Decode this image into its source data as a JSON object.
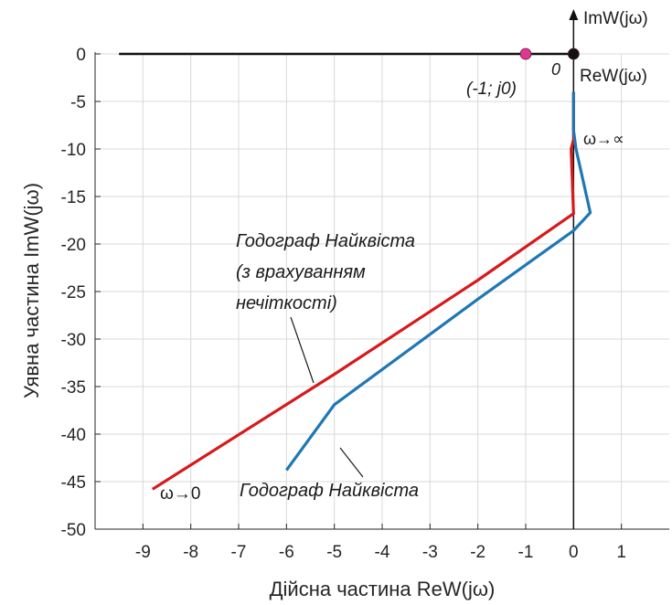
{
  "chart_data": {
    "type": "line",
    "title": "",
    "xlabel": "Дійсна частина ReW(jω)",
    "ylabel": "Уявна частина ImW(jω)",
    "xlim": [
      -10,
      2
    ],
    "ylim": [
      -50,
      0
    ],
    "x_ticks": [
      -9,
      -8,
      -7,
      -6,
      -5,
      -4,
      -3,
      -2,
      -1,
      0,
      1
    ],
    "x_tick_labels": [
      "-9",
      "-8",
      "-7",
      "-6",
      "-5",
      "-4",
      "-3",
      "-2",
      "-1",
      "0",
      "1"
    ],
    "y_ticks": [
      0,
      -5,
      -10,
      -15,
      -20,
      -25,
      -30,
      -35,
      -40,
      -45,
      -50
    ],
    "y_tick_labels": [
      "0",
      "-5",
      "-10",
      "-15",
      "-20",
      "-25",
      "-30",
      "-35",
      "-40",
      "-45",
      "-50"
    ],
    "grid": true,
    "series": [
      {
        "color": "#d7191c",
        "points": [
          [
            0.0,
            -4.0
          ],
          [
            0.0,
            -9.0
          ],
          [
            -0.05,
            -10.0
          ],
          [
            0.0,
            -16.8
          ],
          [
            -2.0,
            -23.8
          ],
          [
            -5.0,
            -33.7
          ],
          [
            -8.8,
            -45.8
          ]
        ]
      },
      {
        "color": "#1f77b4",
        "points": [
          [
            0.0,
            -4.0
          ],
          [
            0.0,
            -8.0
          ],
          [
            0.05,
            -10.0
          ],
          [
            0.35,
            -16.7
          ],
          [
            0.0,
            -18.6
          ],
          [
            -2.0,
            -25.8
          ],
          [
            -5.0,
            -36.9
          ],
          [
            -6.0,
            -43.8
          ]
        ]
      }
    ],
    "markers": [
      {
        "x": -1,
        "y": 0,
        "color": "#e0388f"
      },
      {
        "x": 0,
        "y": 0,
        "color": "#111111"
      }
    ],
    "annotations": {
      "im_axis_label": "ImW(jω)",
      "re_axis_label": "ReW(jω)",
      "origin_label": "0",
      "critical_point_label": "(-1; j0)",
      "omega_inf_label": "ω→∝",
      "omega_zero_label": "ω→0",
      "fuzzy_label_line1": "Годограф Найквіста",
      "fuzzy_label_line2": "(з врахуванням",
      "fuzzy_label_line3": "нечіткості)",
      "crisp_label": "Годограф Найквіста"
    }
  }
}
